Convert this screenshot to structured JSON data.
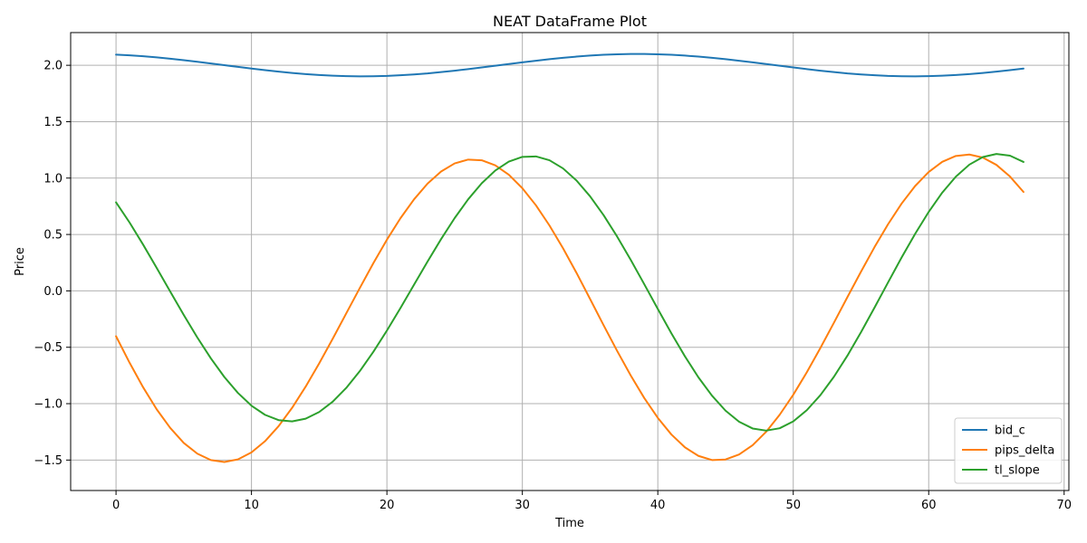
{
  "chart_data": {
    "type": "line",
    "title": "NEAT DataFrame Plot",
    "xlabel": "Time",
    "ylabel": "Price",
    "xlim": [
      -3.35,
      70.35
    ],
    "ylim": [
      -1.77,
      2.29
    ],
    "xticks": [
      0,
      10,
      20,
      30,
      40,
      50,
      60,
      70
    ],
    "yticks": [
      -1.5,
      -1.0,
      -0.5,
      0.0,
      0.5,
      1.0,
      1.5,
      2.0
    ],
    "xtick_labels": [
      "0",
      "10",
      "20",
      "30",
      "40",
      "50",
      "60",
      "70"
    ],
    "ytick_labels": [
      "−1.5",
      "−1.0",
      "−0.5",
      "0.0",
      "0.5",
      "1.0",
      "1.5",
      "2.0"
    ],
    "grid": true,
    "legend_position": "bottom-right",
    "series": [
      {
        "name": "bid_c",
        "color": "#1f77b4",
        "x": [
          0,
          1,
          2,
          3,
          4,
          5,
          6,
          7,
          8,
          9,
          10,
          11,
          12,
          13,
          14,
          15,
          16,
          17,
          18,
          19,
          20,
          21,
          22,
          23,
          24,
          25,
          26,
          27,
          28,
          29,
          30,
          31,
          32,
          33,
          34,
          35,
          36,
          37,
          38,
          39,
          40,
          41,
          42,
          43,
          44,
          45,
          46,
          47,
          48,
          49,
          50,
          51,
          52,
          53,
          54,
          55,
          56,
          57,
          58,
          59,
          60,
          61,
          62,
          63,
          64,
          65,
          66,
          67
        ],
        "values": [
          2.094,
          2.088,
          2.08,
          2.07,
          2.058,
          2.045,
          2.031,
          2.016,
          2.001,
          1.986,
          1.971,
          1.957,
          1.944,
          1.932,
          1.922,
          1.914,
          1.908,
          1.904,
          1.902,
          1.903,
          1.906,
          1.912,
          1.919,
          1.928,
          1.94,
          1.952,
          1.966,
          1.981,
          1.996,
          2.011,
          2.026,
          2.04,
          2.054,
          2.066,
          2.077,
          2.086,
          2.093,
          2.097,
          2.1,
          2.1,
          2.097,
          2.093,
          2.086,
          2.077,
          2.066,
          2.054,
          2.04,
          2.026,
          2.011,
          1.996,
          1.981,
          1.966,
          1.952,
          1.94,
          1.928,
          1.919,
          1.912,
          1.906,
          1.903,
          1.902,
          1.904,
          1.908,
          1.914,
          1.922,
          1.932,
          1.944,
          1.957,
          1.971
        ]
      },
      {
        "name": "pips_delta",
        "color": "#ff7f0e",
        "x": [
          0,
          1,
          2,
          3,
          4,
          5,
          6,
          7,
          8,
          9,
          10,
          11,
          12,
          13,
          14,
          15,
          16,
          17,
          18,
          19,
          20,
          21,
          22,
          23,
          24,
          25,
          26,
          27,
          28,
          29,
          30,
          31,
          32,
          33,
          34,
          35,
          36,
          37,
          38,
          39,
          40,
          41,
          42,
          43,
          44,
          45,
          46,
          47,
          48,
          49,
          50,
          51,
          52,
          53,
          54,
          55,
          56,
          57,
          58,
          59,
          60,
          61,
          62,
          63,
          64,
          65,
          66,
          67
        ],
        "values": [
          -0.402,
          -0.637,
          -0.855,
          -1.05,
          -1.215,
          -1.348,
          -1.443,
          -1.5,
          -1.517,
          -1.494,
          -1.432,
          -1.333,
          -1.2,
          -1.037,
          -0.849,
          -0.643,
          -0.424,
          -0.199,
          0.026,
          0.246,
          0.454,
          0.644,
          0.811,
          0.951,
          1.058,
          1.13,
          1.164,
          1.158,
          1.113,
          1.03,
          0.91,
          0.759,
          0.58,
          0.378,
          0.159,
          -0.072,
          -0.305,
          -0.533,
          -0.75,
          -0.95,
          -1.126,
          -1.273,
          -1.387,
          -1.463,
          -1.5,
          -1.495,
          -1.451,
          -1.368,
          -1.249,
          -1.098,
          -0.921,
          -0.722,
          -0.507,
          -0.283,
          -0.055,
          0.17,
          0.388,
          0.591,
          0.774,
          0.93,
          1.054,
          1.144,
          1.196,
          1.209,
          1.182,
          1.117,
          1.014,
          0.877
        ]
      },
      {
        "name": "tl_slope",
        "color": "#2ca02c",
        "x": [
          0,
          1,
          2,
          3,
          4,
          5,
          6,
          7,
          8,
          9,
          10,
          11,
          12,
          13,
          14,
          15,
          16,
          17,
          18,
          19,
          20,
          21,
          22,
          23,
          24,
          25,
          26,
          27,
          28,
          29,
          30,
          31,
          32,
          33,
          34,
          35,
          36,
          37,
          38,
          39,
          40,
          41,
          42,
          43,
          44,
          45,
          46,
          47,
          48,
          49,
          50,
          51,
          52,
          53,
          54,
          55,
          56,
          57,
          58,
          59,
          60,
          61,
          62,
          63,
          64,
          65,
          66,
          67
        ],
        "values": [
          0.785,
          0.606,
          0.41,
          0.204,
          -0.006,
          -0.213,
          -0.413,
          -0.598,
          -0.764,
          -0.905,
          -1.018,
          -1.099,
          -1.146,
          -1.157,
          -1.133,
          -1.074,
          -0.982,
          -0.86,
          -0.711,
          -0.54,
          -0.352,
          -0.152,
          0.054,
          0.26,
          0.459,
          0.645,
          0.812,
          0.954,
          1.067,
          1.146,
          1.188,
          1.192,
          1.158,
          1.086,
          0.978,
          0.838,
          0.671,
          0.481,
          0.275,
          0.059,
          -0.16,
          -0.376,
          -0.58,
          -0.767,
          -0.929,
          -1.062,
          -1.16,
          -1.22,
          -1.239,
          -1.218,
          -1.157,
          -1.058,
          -0.925,
          -0.762,
          -0.574,
          -0.367,
          -0.148,
          0.075,
          0.296,
          0.506,
          0.7,
          0.871,
          1.012,
          1.119,
          1.187,
          1.214,
          1.199,
          1.143
        ]
      }
    ]
  }
}
